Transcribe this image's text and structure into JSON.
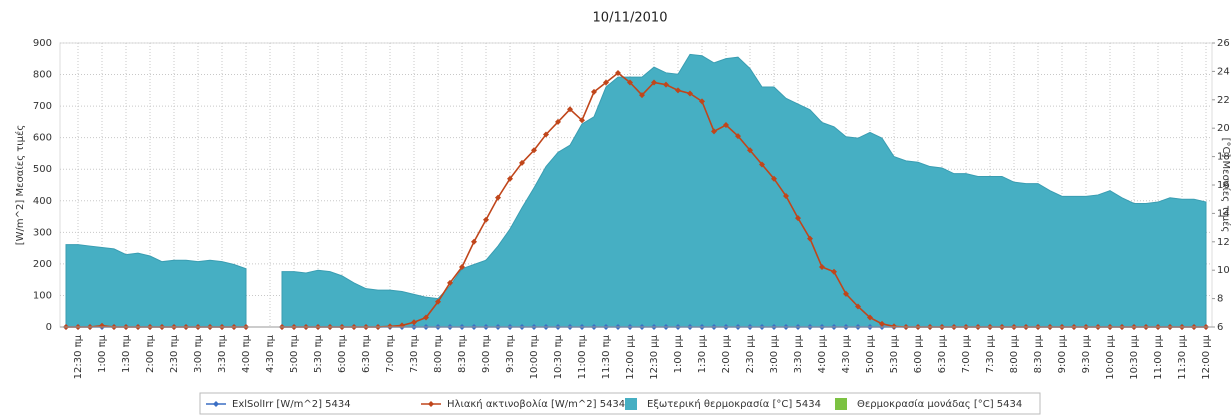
{
  "chart_data": {
    "type": "line",
    "title": "10/11/2010",
    "ylabel": "[W/m^2] Μεσαίες τιμές",
    "y2label": "[°C] Μεσαίες τιμές",
    "ylim": [
      0,
      900
    ],
    "yticks": [
      0,
      100,
      200,
      300,
      400,
      500,
      600,
      700,
      800,
      900
    ],
    "y2lim": [
      6,
      26
    ],
    "y2ticks": [
      6,
      8,
      10,
      12,
      14,
      16,
      18,
      20,
      22,
      24,
      26
    ],
    "grid": true,
    "legend": "bottom",
    "categories": [
      null,
      "12:30 πμ",
      null,
      "1:00 πμ",
      null,
      "1:30 πμ",
      null,
      "2:00 πμ",
      null,
      "2:30 πμ",
      null,
      "3:00 πμ",
      null,
      "3:30 πμ",
      null,
      "4:00 πμ",
      null,
      "4:30 πμ",
      null,
      "5:00 πμ",
      null,
      "5:30 πμ",
      null,
      "6:00 πμ",
      null,
      "6:30 πμ",
      null,
      "7:00 πμ",
      null,
      "7:30 πμ",
      null,
      "8:00 πμ",
      null,
      "8:30 πμ",
      null,
      "9:00 πμ",
      null,
      "9:30 πμ",
      null,
      "10:00 πμ",
      null,
      "10:30 πμ",
      null,
      "11:00 πμ",
      null,
      "11:30 πμ",
      null,
      "12:00 μμ",
      null,
      "12:30 μμ",
      null,
      "1:00 μμ",
      null,
      "1:30 μμ",
      null,
      "2:00 μμ",
      null,
      "2:30 μμ",
      null,
      "3:00 μμ",
      null,
      "3:30 μμ",
      null,
      "4:00 μμ",
      null,
      "4:30 μμ",
      null,
      "5:00 μμ",
      null,
      "5:30 μμ",
      null,
      "6:00 μμ",
      null,
      "6:30 μμ",
      null,
      "7:00 μμ",
      null,
      "7:30 μμ",
      null,
      "8:00 μμ",
      null,
      "8:30 μμ",
      null,
      "9:00 μμ",
      null,
      "9:30 μμ",
      null,
      "10:00 μμ",
      null,
      "10:30 μμ",
      null,
      "11:00 μμ",
      null,
      "11:30 μμ",
      null,
      "12:00 μμ"
    ],
    "series": [
      {
        "name": "ExlSolIrr [W/m^2] 5434",
        "color": "#3b6fc4",
        "style": "line",
        "values": [
          0,
          0,
          0,
          0,
          0,
          0,
          0,
          0,
          0,
          0,
          0,
          0,
          0,
          0,
          0,
          0,
          null,
          null,
          0,
          0,
          0,
          0,
          0,
          0,
          0,
          0,
          0,
          0,
          0,
          0,
          0,
          0,
          0,
          0,
          0,
          0,
          0,
          0,
          0,
          0,
          0,
          0,
          0,
          0,
          0,
          0,
          0,
          0,
          0,
          0,
          0,
          0,
          0,
          0,
          0,
          0,
          0,
          0,
          0,
          0,
          0,
          0,
          0,
          0,
          0,
          0,
          0,
          0,
          0,
          0,
          0,
          0,
          0,
          0,
          0,
          0,
          0,
          0,
          0,
          0,
          0,
          0,
          0,
          0,
          0,
          0,
          0,
          0,
          0,
          0,
          0,
          0,
          0,
          0,
          0,
          0
        ]
      },
      {
        "name": "Ηλιακή ακτινοβολία [W/m^2] 5434",
        "color": "#c0461b",
        "style": "line",
        "values": [
          0,
          0,
          0,
          4,
          0,
          0,
          0,
          0,
          0,
          0,
          0,
          0,
          0,
          0,
          0,
          0,
          null,
          null,
          0,
          0,
          0,
          0,
          0,
          0,
          0,
          0,
          0,
          2,
          5,
          15,
          30,
          80,
          140,
          190,
          270,
          340,
          410,
          470,
          520,
          560,
          610,
          650,
          690,
          655,
          745,
          775,
          805,
          775,
          735,
          775,
          768,
          750,
          740,
          715,
          620,
          640,
          605,
          560,
          515,
          470,
          415,
          345,
          280,
          190,
          175,
          105,
          65,
          30,
          10,
          2,
          0,
          0,
          0,
          0,
          0,
          0,
          0,
          0,
          0,
          0,
          0,
          0,
          0,
          0,
          0,
          0,
          0,
          0,
          0,
          0,
          0,
          0,
          0,
          0,
          0,
          0
        ]
      },
      {
        "name": "Εξωτερική θερμοκρασία [°C] 5434",
        "color": "#46afc3",
        "style": "area",
        "axis": "y2",
        "values": [
          11.8,
          11.8,
          11.7,
          11.6,
          11.5,
          11.1,
          11.2,
          11.0,
          10.6,
          10.7,
          10.7,
          10.6,
          10.7,
          10.6,
          10.4,
          10.1,
          null,
          null,
          9.9,
          9.9,
          9.8,
          10.0,
          9.9,
          9.6,
          9.1,
          8.7,
          8.6,
          8.6,
          8.5,
          8.3,
          8.1,
          8.0,
          8.9,
          10.1,
          10.4,
          10.7,
          11.7,
          12.9,
          14.4,
          15.8,
          17.3,
          18.3,
          18.8,
          20.3,
          20.8,
          22.9,
          23.6,
          23.6,
          23.6,
          24.3,
          23.9,
          23.8,
          25.2,
          25.1,
          24.6,
          24.9,
          25.0,
          24.2,
          22.9,
          22.9,
          22.1,
          21.7,
          21.3,
          20.4,
          20.1,
          19.4,
          19.3,
          19.7,
          19.3,
          18.0,
          17.7,
          17.6,
          17.3,
          17.2,
          16.8,
          16.8,
          16.6,
          16.6,
          16.6,
          16.2,
          16.1,
          16.1,
          15.6,
          15.2,
          15.2,
          15.2,
          15.3,
          15.6,
          15.1,
          14.7,
          14.7,
          14.8,
          15.1,
          15.0,
          15.0,
          14.8
        ]
      },
      {
        "name": "Θερμοκρασία μονάδας [°C] 5434",
        "color": "#7cc242",
        "style": "area",
        "axis": "y2",
        "values": [
          null,
          null,
          null,
          null,
          null,
          null,
          null,
          null,
          null,
          null,
          null,
          null,
          null,
          null,
          null,
          null,
          null,
          null,
          null,
          null,
          null,
          null,
          null,
          null,
          null,
          null,
          null,
          null,
          null,
          null,
          null,
          null,
          null,
          null,
          null,
          null,
          null,
          null,
          null,
          null,
          null,
          null,
          null,
          null,
          null,
          null,
          null,
          null,
          null,
          null,
          null,
          null,
          null,
          null,
          null,
          null,
          null,
          null,
          null,
          null,
          null,
          null,
          null,
          null,
          null,
          null,
          null,
          null,
          null,
          null,
          null,
          null,
          null,
          null,
          null,
          null,
          null,
          null,
          null,
          null,
          null,
          null,
          null,
          null,
          null,
          null,
          null,
          null,
          null,
          null,
          null,
          null,
          null,
          null,
          null,
          null
        ]
      }
    ]
  }
}
